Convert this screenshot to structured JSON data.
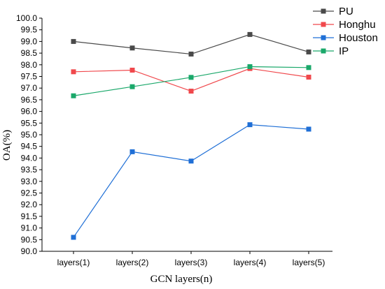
{
  "chart_data": {
    "type": "line",
    "xlabel": "GCN layers(n)",
    "ylabel": "OA(%)",
    "categories": [
      "layers(1)",
      "layers(2)",
      "layers(3)",
      "layers(4)",
      "layers(5)"
    ],
    "ylim": [
      90.0,
      100.0
    ],
    "ytick_step": 0.5,
    "grid": false,
    "legend_position": "top-right",
    "series": [
      {
        "name": "PU",
        "color": "#4a4a4a",
        "marker": "square",
        "values": [
          99.0,
          98.72,
          98.46,
          99.3,
          98.55
        ]
      },
      {
        "name": "Honghu",
        "color": "#f0484c",
        "marker": "square",
        "values": [
          97.7,
          97.77,
          96.87,
          97.84,
          97.47
        ]
      },
      {
        "name": "Houston",
        "color": "#1f6fd6",
        "marker": "square",
        "values": [
          90.6,
          94.27,
          93.87,
          95.43,
          95.24
        ]
      },
      {
        "name": "IP",
        "color": "#1aa86a",
        "marker": "square",
        "values": [
          96.67,
          97.06,
          97.46,
          97.92,
          97.88
        ]
      }
    ]
  }
}
